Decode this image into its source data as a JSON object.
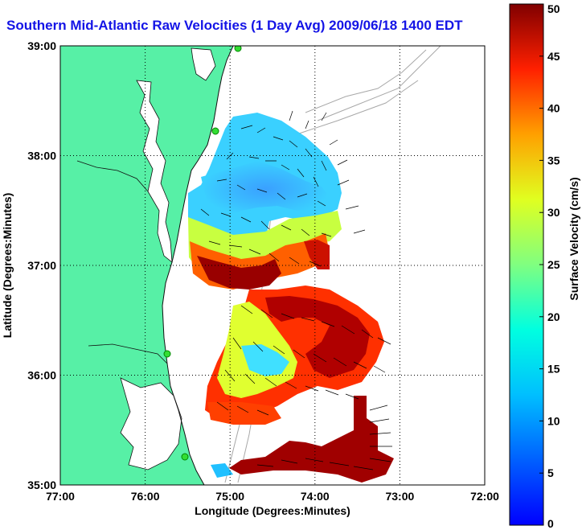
{
  "title": "Southern Mid-Atlantic Raw Velocities (1 Day Avg) 2009/06/18 1400 EDT",
  "x_axis": {
    "label": "Longitude (Degrees:Minutes)",
    "ticks": [
      "77:00",
      "76:00",
      "75:00",
      "74:00",
      "73:00",
      "72:00"
    ]
  },
  "y_axis": {
    "label": "Latitude (Degrees:Minutes)",
    "ticks": [
      "39:00",
      "38:00",
      "37:00",
      "36:00",
      "35:00"
    ]
  },
  "colorbar": {
    "label": "Surface Velocity (cm/s)",
    "ticks": [
      "50",
      "45",
      "40",
      "35",
      "30",
      "25",
      "20",
      "15",
      "10",
      "5",
      "0"
    ],
    "range": [
      0,
      50
    ],
    "palette": "jet"
  },
  "colors": {
    "land": "#57f0a6",
    "title": "#1414e6",
    "bathymetry": "#a8a8a8"
  },
  "map_extent": {
    "lon": [
      -77,
      -72
    ],
    "lat": [
      35,
      39
    ]
  }
}
